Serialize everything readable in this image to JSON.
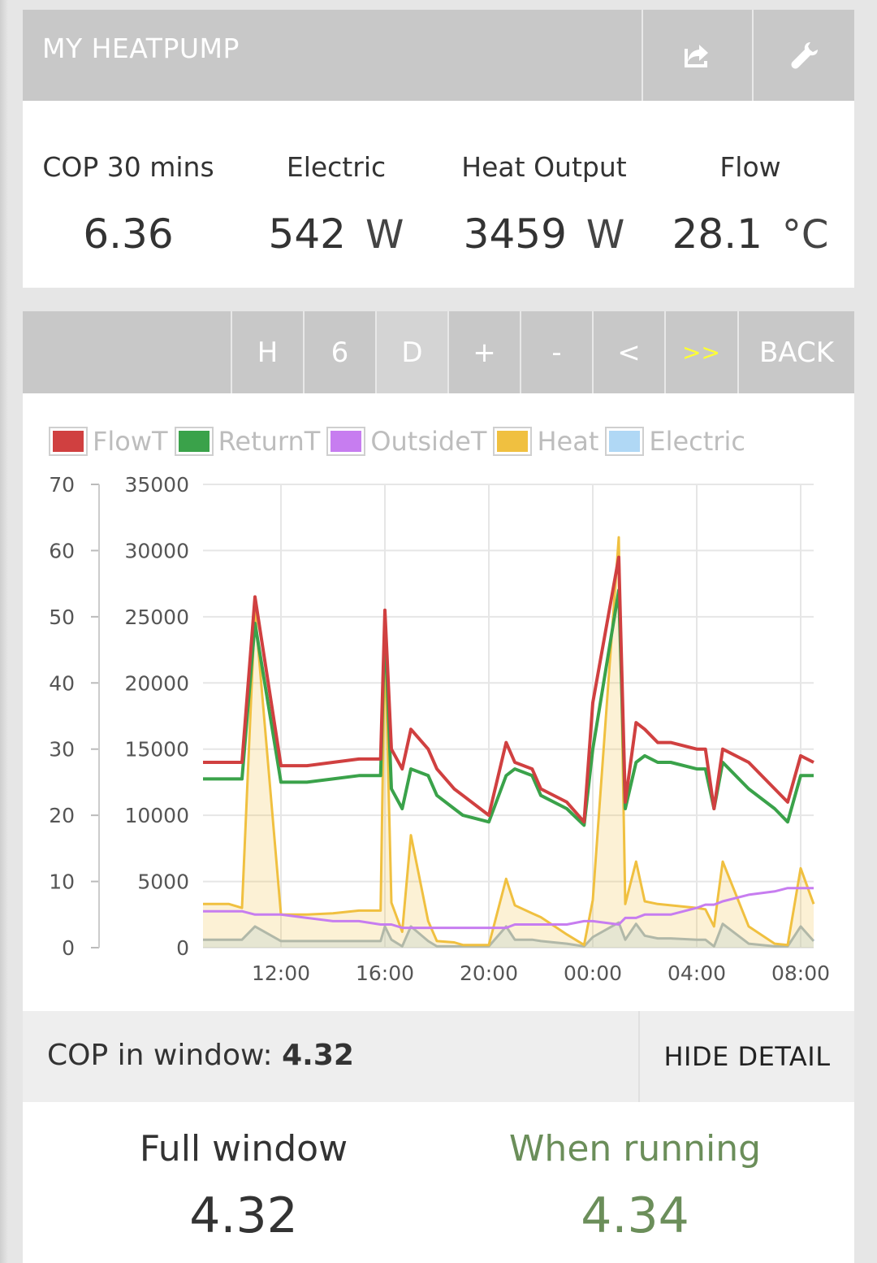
{
  "header": {
    "title": "MY HEATPUMP",
    "share_icon": "share-icon",
    "config_icon": "wrench-icon"
  },
  "stats": [
    {
      "label": "COP 30 mins",
      "value": "6.36",
      "unit": ""
    },
    {
      "label": "Electric",
      "value": "542",
      "unit": "W"
    },
    {
      "label": "Heat Output",
      "value": "3459",
      "unit": "W"
    },
    {
      "label": "Flow",
      "value": "28.1",
      "unit": "°C"
    }
  ],
  "toolbar": {
    "buttons": [
      "H",
      "6",
      "D",
      "+",
      "-",
      "<",
      ">>"
    ],
    "back": "BACK",
    "active": "D",
    "highlight_color": "#ffff33"
  },
  "legend": [
    {
      "label": "FlowT",
      "color": "#d04040"
    },
    {
      "label": "ReturnT",
      "color": "#3aa24a"
    },
    {
      "label": "OutsideT",
      "color": "#c77df0"
    },
    {
      "label": "Heat",
      "color": "#f0c040"
    },
    {
      "label": "Electric",
      "color": "#b0d8f5"
    }
  ],
  "chart_data": {
    "type": "line",
    "x": [
      "09:00",
      "10:00",
      "10:30",
      "11:00",
      "12:00",
      "13:00",
      "14:00",
      "15:00",
      "15:50",
      "16:00",
      "16:15",
      "16:40",
      "17:00",
      "17:40",
      "18:00",
      "18:40",
      "19:00",
      "20:00",
      "20:40",
      "21:00",
      "21:40",
      "22:00",
      "23:00",
      "23:40",
      "00:00",
      "01:00",
      "01:15",
      "01:40",
      "02:00",
      "02:30",
      "03:00",
      "04:00",
      "04:20",
      "04:40",
      "05:00",
      "06:00",
      "07:00",
      "07:30",
      "08:00",
      "08:30"
    ],
    "x_ticks": [
      "12:00",
      "16:00",
      "20:00",
      "00:00",
      "04:00",
      "08:00"
    ],
    "y_left": {
      "min": 0,
      "max": 70,
      "ticks": [
        0,
        10,
        20,
        30,
        40,
        50,
        60,
        70
      ]
    },
    "y_right": {
      "min": 0,
      "max": 35000,
      "ticks": [
        0,
        5000,
        10000,
        15000,
        20000,
        25000,
        30000,
        35000
      ]
    },
    "series": [
      {
        "name": "FlowT",
        "axis": "left",
        "values": [
          28,
          28,
          28,
          53,
          27.5,
          27.5,
          28,
          28.5,
          28.5,
          51,
          30,
          27,
          33,
          30,
          27,
          24,
          23,
          20,
          31,
          28,
          27,
          24,
          22,
          19,
          37,
          59,
          22,
          34,
          33,
          31,
          31,
          30,
          30,
          21,
          30,
          28,
          24,
          22,
          29,
          28
        ]
      },
      {
        "name": "ReturnT",
        "axis": "left",
        "values": [
          25.5,
          25.5,
          25.5,
          49,
          25,
          25,
          25.5,
          26,
          26,
          49,
          24,
          21,
          27,
          26,
          23,
          21,
          20,
          19,
          26,
          27,
          26,
          23,
          21,
          18.5,
          30,
          54,
          21,
          28,
          29,
          28,
          28,
          27,
          27,
          21,
          28,
          24,
          21,
          19,
          26,
          26
        ]
      },
      {
        "name": "OutsideT",
        "axis": "left",
        "values": [
          5.5,
          5.5,
          5.5,
          5,
          5,
          4.5,
          4,
          4,
          3.5,
          3.5,
          3.5,
          3,
          3,
          3,
          3,
          3,
          3,
          3,
          3,
          3.5,
          3.5,
          3.5,
          3.5,
          4,
          4,
          3.5,
          4.5,
          4.5,
          5,
          5,
          5,
          6,
          6.5,
          6.5,
          7,
          8,
          8.5,
          9,
          9,
          9
        ]
      },
      {
        "name": "Heat",
        "axis": "right",
        "values": [
          3300,
          3300,
          3000,
          25500,
          2500,
          2500,
          2600,
          2800,
          2800,
          23500,
          3400,
          1200,
          8500,
          2000,
          500,
          400,
          200,
          200,
          5200,
          3200,
          2600,
          2300,
          1000,
          200,
          3600,
          31000,
          3300,
          6500,
          3500,
          3300,
          3200,
          3000,
          2900,
          1600,
          6500,
          1600,
          300,
          200,
          6000,
          3300
        ]
      },
      {
        "name": "Electric",
        "axis": "right",
        "values": [
          600,
          600,
          600,
          1600,
          500,
          500,
          500,
          500,
          500,
          1600,
          600,
          100,
          1600,
          500,
          100,
          100,
          100,
          100,
          1600,
          600,
          600,
          500,
          300,
          100,
          800,
          1900,
          600,
          1800,
          900,
          700,
          700,
          600,
          600,
          100,
          1800,
          300,
          100,
          100,
          1600,
          500
        ]
      }
    ]
  },
  "cop_window": {
    "label": "COP in window:",
    "value": "4.32",
    "hide_label": "HIDE DETAIL"
  },
  "bottom": {
    "full": {
      "label": "Full window",
      "value": "4.32"
    },
    "running": {
      "label": "When running",
      "value": "4.34"
    }
  }
}
